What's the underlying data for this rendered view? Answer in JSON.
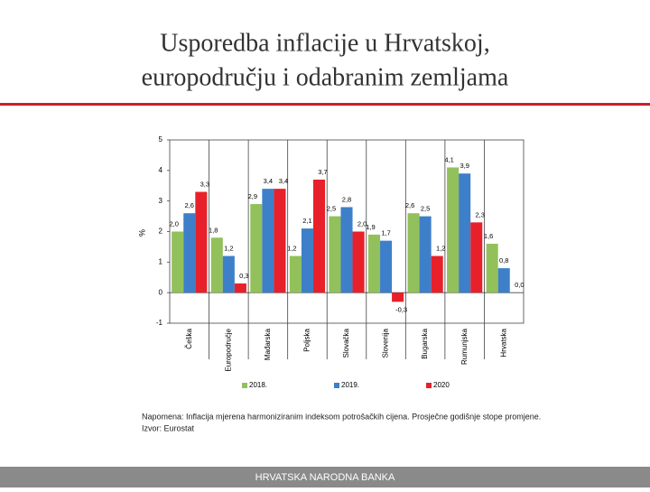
{
  "title_lines": [
    "Usporedba inflacije u Hrvatskoj,",
    "europodručju i odabranim zemljama"
  ],
  "chart_data": {
    "type": "bar",
    "y_label": "%",
    "categories": [
      "Češka",
      "Europodručje",
      "Mađarska",
      "Poljska",
      "Slovačka",
      "Slovenija",
      "Bugarska",
      "Rumunjska",
      "Hrvatska"
    ],
    "series": [
      {
        "name": "2018.",
        "color": "#92c05a",
        "values": [
          2.0,
          1.8,
          2.9,
          1.2,
          2.5,
          1.9,
          2.6,
          4.1,
          1.6
        ],
        "value_labels": [
          "2,0",
          "1,8",
          "2,9",
          "1,2",
          "2,5",
          "1,9",
          "2,6",
          "4,1",
          "1,6"
        ]
      },
      {
        "name": "2019.",
        "color": "#3e7fc9",
        "values": [
          2.6,
          1.2,
          3.4,
          2.1,
          2.8,
          1.7,
          2.5,
          3.9,
          0.8
        ],
        "value_labels": [
          "2,6",
          "1,2",
          "3,4",
          "2,1",
          "2,8",
          "1,7",
          "2,5",
          "3,9",
          "0,8"
        ]
      },
      {
        "name": "2020",
        "color": "#e8202a",
        "values": [
          3.3,
          0.3,
          3.4,
          3.7,
          2.0,
          -0.3,
          1.2,
          2.3,
          0.0
        ],
        "value_labels": [
          "3,3",
          "0,3",
          "3,4",
          "3,7",
          "2,0",
          "-0,3",
          "1,2",
          "2,3",
          "0,0"
        ]
      }
    ],
    "ylim": [
      -1,
      5
    ],
    "yticks": [
      {
        "value": -1,
        "label": "-1"
      },
      0,
      1,
      2,
      3,
      4,
      5
    ]
  },
  "note": "Napomena: Inflacija mjerena harmoniziranim indeksom potrošačkih cijena. Prosječne godišnje stope promjene.",
  "source": "Izvor: Eurostat",
  "footer": "HRVATSKA NARODNA BANKA"
}
